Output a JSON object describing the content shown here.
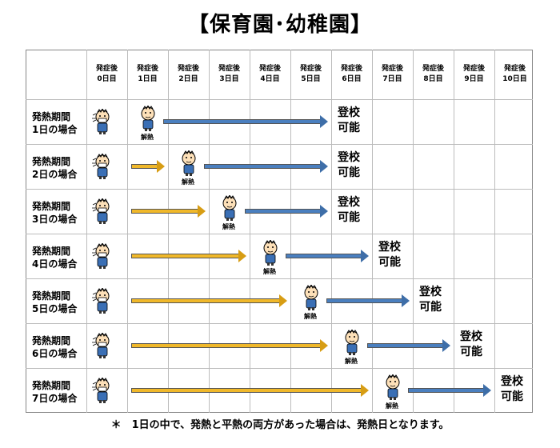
{
  "title": "【保育園･幼稚園】",
  "days": [
    "発症後\n0日目",
    "発症後\n1日目",
    "発症後\n2日目",
    "発症後\n3日目",
    "発症後\n4日目",
    "発症後\n5日目",
    "発症後\n6日目",
    "発症後\n7日目",
    "発症後\n8日目",
    "発症後\n9日目",
    "発症後\n10日目"
  ],
  "rows": [
    {
      "label": "発熱期間\n1日の場合",
      "fever_days": 1,
      "return_day": 6
    },
    {
      "label": "発熱期間\n2日の場合",
      "fever_days": 2,
      "return_day": 6
    },
    {
      "label": "発熱期間\n3日の場合",
      "fever_days": 3,
      "return_day": 6
    },
    {
      "label": "発熱期間\n4日の場合",
      "fever_days": 4,
      "return_day": 7
    },
    {
      "label": "発熱期間\n5日の場合",
      "fever_days": 5,
      "return_day": 8
    },
    {
      "label": "発熱期間\n6日の場合",
      "fever_days": 6,
      "return_day": 9
    },
    {
      "label": "発熱期間\n7日の場合",
      "fever_days": 7,
      "return_day": 10
    }
  ],
  "fever_end_label": "解熱",
  "return_label": "登校\n可能",
  "footnote": "＊　1日の中で、発熱と平熱の両方があった場合は、発熱日となります。",
  "colors": {
    "fever_arrow": "#f0b82a",
    "recovery_arrow": "#4a7fbf"
  }
}
